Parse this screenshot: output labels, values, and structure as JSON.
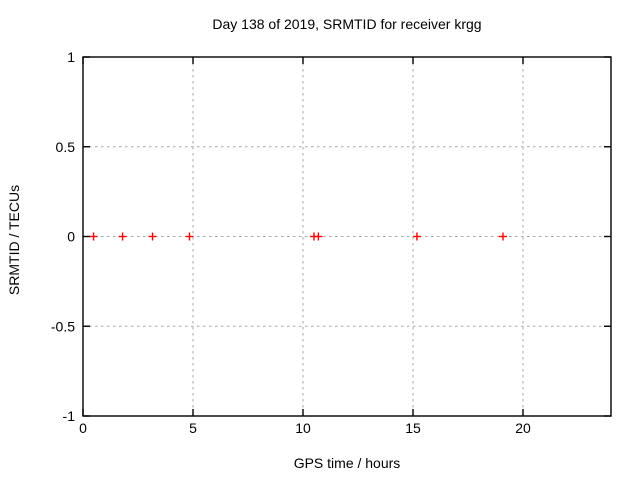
{
  "chart_data": {
    "type": "scatter",
    "title": "Day 138 of 2019, SRMTID for receiver krgg",
    "xlabel": "GPS time / hours",
    "ylabel": "SRMTID / TECUs",
    "xlim": [
      0,
      24
    ],
    "ylim": [
      -1,
      1
    ],
    "xticks": [
      0,
      5,
      10,
      15,
      20
    ],
    "xtick_labels": [
      "0",
      "5",
      "10",
      "15",
      "20"
    ],
    "yticks": [
      -1,
      -0.5,
      0,
      0.5,
      1
    ],
    "ytick_labels": [
      "-1",
      "-0.5",
      "0",
      "0.5",
      "1"
    ],
    "grid": true,
    "legend": "none",
    "marker": "plus",
    "series": [
      {
        "name": "SRMTID",
        "color": "#ff0000",
        "points": [
          {
            "x": 0.48,
            "y": 0
          },
          {
            "x": 1.8,
            "y": 0
          },
          {
            "x": 3.16,
            "y": 0
          },
          {
            "x": 4.84,
            "y": 0
          },
          {
            "x": 10.5,
            "y": 0
          },
          {
            "x": 10.7,
            "y": 0
          },
          {
            "x": 15.18,
            "y": 0
          },
          {
            "x": 19.09,
            "y": 0
          }
        ]
      }
    ],
    "colors": {
      "marker": "#ff0000",
      "grid": "#a6a6a6",
      "axis": "#000000",
      "text": "#000000",
      "background": "#ffffff"
    }
  }
}
